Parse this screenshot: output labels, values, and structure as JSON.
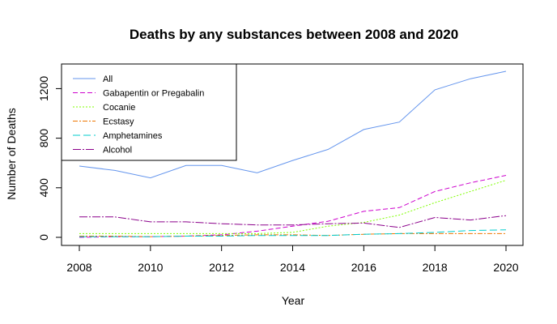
{
  "chart_data": {
    "type": "line",
    "title": "Deaths by any substances between 2008 and 2020",
    "xlabel": "Year",
    "ylabel": "Number of Deaths",
    "x": [
      2008,
      2009,
      2010,
      2011,
      2012,
      2013,
      2014,
      2015,
      2016,
      2017,
      2018,
      2019,
      2020
    ],
    "xlim": [
      2008,
      2020
    ],
    "ylim": [
      0,
      1340
    ],
    "xticks": [
      2008,
      2010,
      2012,
      2014,
      2016,
      2018,
      2020
    ],
    "yticks": [
      0,
      400,
      800,
      1200
    ],
    "legend_position": "top-left",
    "grid": false,
    "series": [
      {
        "name": "All",
        "color": "#6495ED",
        "dash": "",
        "values": [
          575,
          540,
          480,
          580,
          580,
          520,
          620,
          710,
          870,
          930,
          1190,
          1280,
          1340
        ]
      },
      {
        "name": "Gabapentin or Pregabalin",
        "color": "#CD00CD",
        "dash": "6,3",
        "values": [
          0,
          5,
          5,
          10,
          20,
          50,
          90,
          130,
          210,
          240,
          370,
          440,
          500
        ]
      },
      {
        "name": "Cocanie",
        "color": "#7FFF00",
        "dash": "2,2",
        "values": [
          30,
          30,
          30,
          30,
          30,
          30,
          40,
          90,
          120,
          180,
          280,
          370,
          460
        ]
      },
      {
        "name": "Ecstasy",
        "color": "#EE7600",
        "dash": "6,2,2,2",
        "values": [
          10,
          10,
          5,
          10,
          15,
          20,
          20,
          15,
          25,
          30,
          30,
          30,
          30
        ]
      },
      {
        "name": "Amphetamines",
        "color": "#00CDCD",
        "dash": "9,4",
        "values": [
          5,
          5,
          5,
          10,
          10,
          15,
          15,
          15,
          25,
          30,
          40,
          55,
          60
        ]
      },
      {
        "name": "Alcohol",
        "color": "#8B008B",
        "dash": "10,2,2,2",
        "values": [
          165,
          165,
          125,
          125,
          110,
          100,
          100,
          110,
          115,
          80,
          160,
          140,
          175
        ]
      }
    ]
  }
}
